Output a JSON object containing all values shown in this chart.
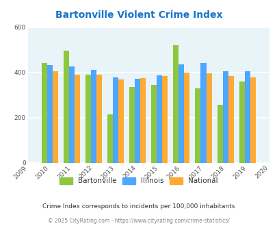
{
  "title": "Bartonville Violent Crime Index",
  "title_color": "#1874CD",
  "years": [
    2009,
    2010,
    2011,
    2012,
    2013,
    2014,
    2015,
    2016,
    2017,
    2018,
    2019,
    2020
  ],
  "bar_years": [
    2010,
    2011,
    2012,
    2013,
    2014,
    2015,
    2016,
    2017,
    2018,
    2019
  ],
  "bartonville": [
    440,
    495,
    390,
    215,
    335,
    345,
    520,
    330,
    257,
    360
  ],
  "illinois": [
    432,
    425,
    412,
    377,
    371,
    386,
    435,
    440,
    405,
    406
  ],
  "national": [
    404,
    390,
    390,
    367,
    375,
    384,
    400,
    397,
    383,
    379
  ],
  "bartonville_color": "#8dc63f",
  "illinois_color": "#4da6ff",
  "national_color": "#ffaa33",
  "bg_color": "#e8f4f8",
  "ylim": [
    0,
    600
  ],
  "yticks": [
    0,
    200,
    400,
    600
  ],
  "grid_color": "#ffffff",
  "subtitle": "Crime Index corresponds to incidents per 100,000 inhabitants",
  "footer": "© 2025 CityRating.com - https://www.cityrating.com/crime-statistics/",
  "legend_labels": [
    "Bartonville",
    "Illinois",
    "National"
  ],
  "bar_width": 0.25
}
